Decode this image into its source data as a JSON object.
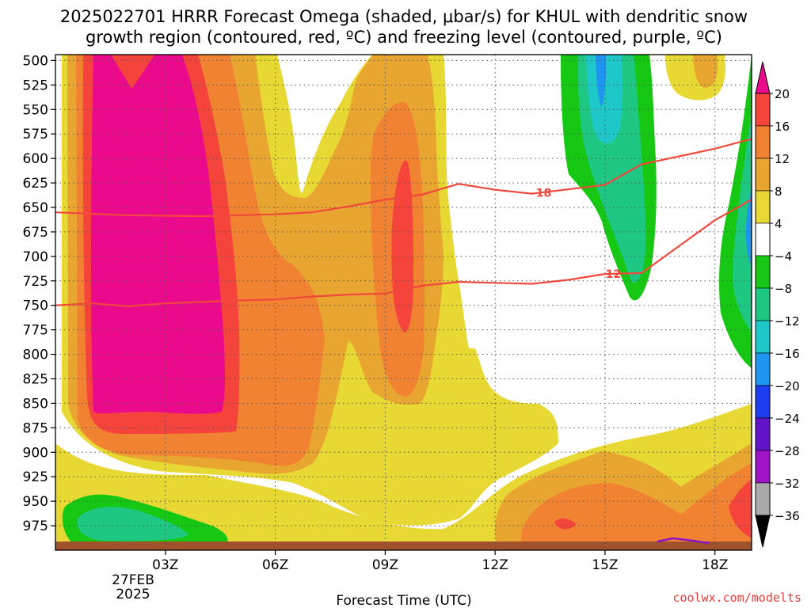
{
  "chart_data": {
    "type": "heatmap",
    "title_line1": "2025022701 HRRR Forecast Omega (shaded, μbar/s) for KHUL with dendritic snow",
    "title_line2": "growth region (contoured, red, ºC) and freezing level (contoured, purple, ºC)",
    "xlabel": "Forecast Time (UTC)",
    "x_ticks": [
      "03Z",
      "06Z",
      "09Z",
      "12Z",
      "15Z",
      "18Z"
    ],
    "x_tick_hours": [
      3,
      6,
      9,
      12,
      15,
      18
    ],
    "x_date_label": [
      "27FEB",
      "2025"
    ],
    "xlim_hours": [
      0,
      19
    ],
    "y_ticks": [
      500,
      525,
      550,
      575,
      600,
      625,
      650,
      675,
      700,
      725,
      750,
      775,
      800,
      825,
      850,
      875,
      900,
      925,
      950,
      975
    ],
    "ylim_hpa": [
      494,
      1000
    ],
    "colorbar": {
      "labels": [
        "20",
        "16",
        "12",
        "8",
        "4",
        "−4",
        "−8",
        "−12",
        "−16",
        "−20",
        "−24",
        "−28",
        "−32",
        "−36"
      ],
      "colors": [
        "#ec0a8c",
        "#f5443c",
        "#f08232",
        "#e8a530",
        "#e8d834",
        "#ffffff",
        "#16c814",
        "#1ec882",
        "#1ec8c8",
        "#1e96f0",
        "#1e3cf0",
        "#6414c8",
        "#a014c8",
        "#aaaaaa",
        "#000000"
      ]
    },
    "contours": [
      {
        "label": "−18",
        "color": "#f0483c",
        "x_hours": [
          0,
          2,
          4,
          6,
          7,
          8,
          9,
          10,
          11,
          12,
          13,
          15,
          16,
          17,
          18,
          19
        ],
        "p_hpa": [
          655,
          658,
          659,
          657,
          655,
          649,
          642,
          637,
          626,
          632,
          636,
          627,
          606,
          598,
          590,
          580
        ]
      },
      {
        "label": "−12",
        "color": "#f0483c",
        "x_hours": [
          0,
          1,
          2,
          3,
          5,
          6,
          7,
          8,
          9,
          10,
          11,
          12,
          13,
          14,
          15,
          16,
          17,
          18,
          19
        ],
        "p_hpa": [
          750,
          748,
          751,
          748,
          745,
          744,
          741,
          739,
          738,
          730,
          726,
          727,
          728,
          724,
          718,
          717,
          690,
          663,
          642
        ]
      }
    ],
    "credit": "coolwx.com/modelts"
  }
}
